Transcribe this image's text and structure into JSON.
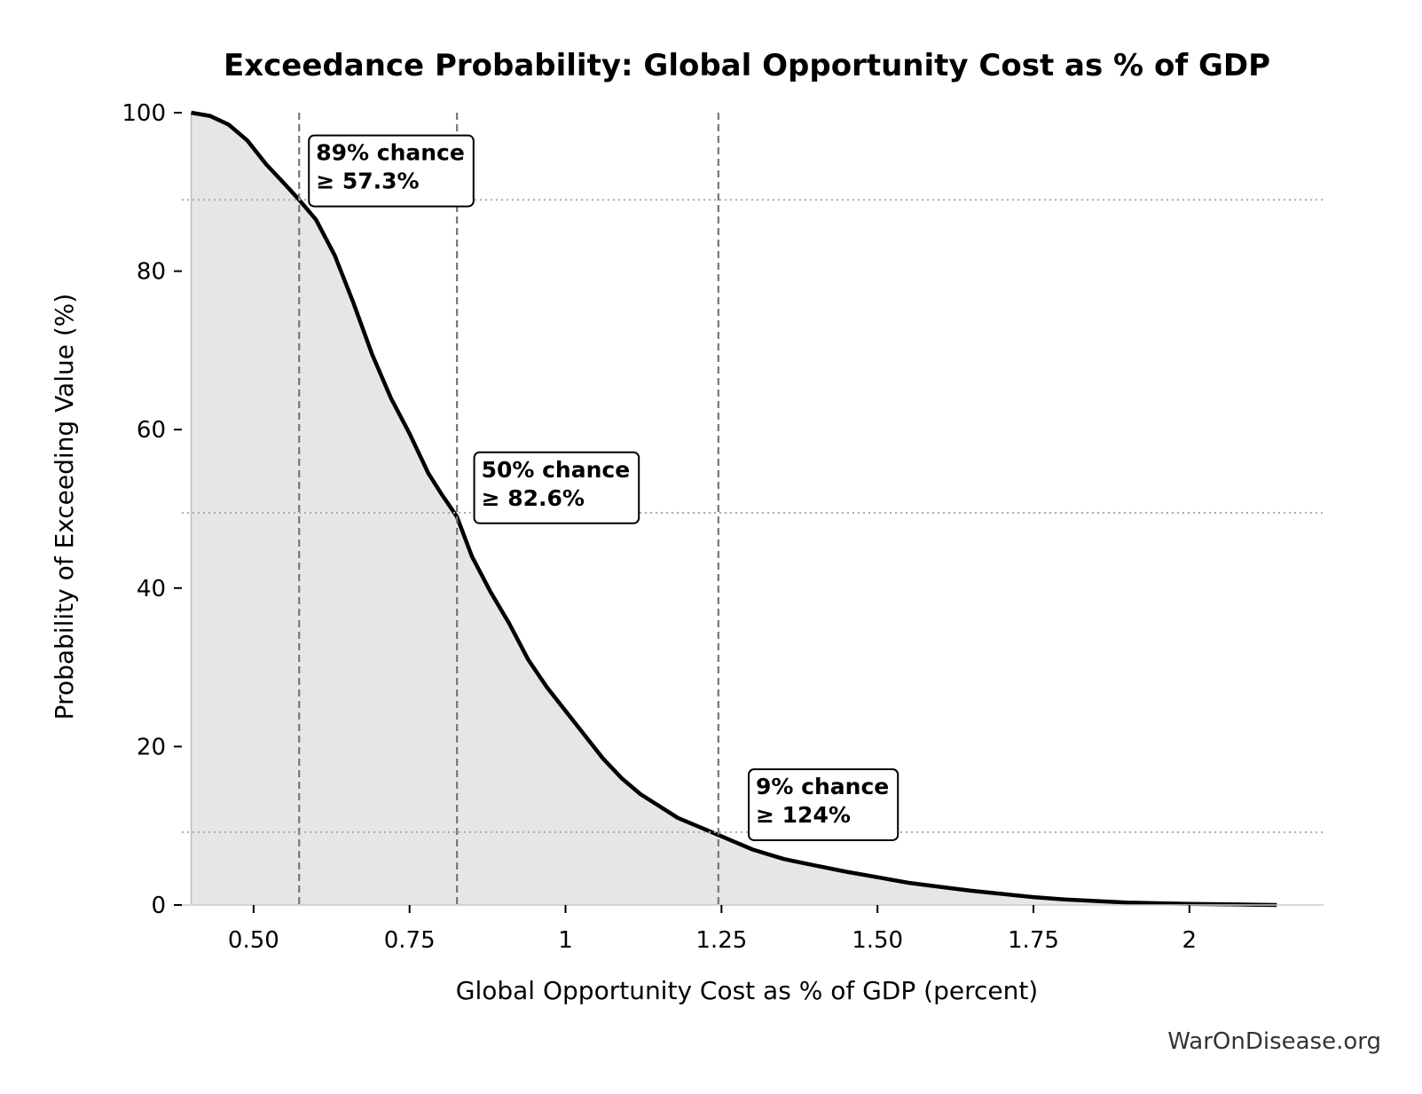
{
  "chart_data": {
    "type": "area",
    "title": "Exceedance Probability: Global Opportunity Cost as % of GDP",
    "xlabel": "Global Opportunity Cost as % of GDP (percent)",
    "ylabel": "Probability of Exceeding Value (%)",
    "xlim": [
      0.385,
      2.215
    ],
    "ylim": [
      0,
      100
    ],
    "x_ticks": [
      {
        "value": 0.5,
        "label": "0.50"
      },
      {
        "value": 0.75,
        "label": "0.75"
      },
      {
        "value": 1.0,
        "label": "1"
      },
      {
        "value": 1.25,
        "label": "1.25"
      },
      {
        "value": 1.5,
        "label": "1.50"
      },
      {
        "value": 1.75,
        "label": "1.75"
      },
      {
        "value": 2.0,
        "label": "2"
      }
    ],
    "y_ticks": [
      {
        "value": 0,
        "label": "0"
      },
      {
        "value": 20,
        "label": "20"
      },
      {
        "value": 40,
        "label": "40"
      },
      {
        "value": 60,
        "label": "60"
      },
      {
        "value": 80,
        "label": "80"
      },
      {
        "value": 100,
        "label": "100"
      }
    ],
    "series": [
      {
        "x": [
          0.4,
          0.43,
          0.46,
          0.49,
          0.52,
          0.55,
          0.573,
          0.6,
          0.63,
          0.66,
          0.69,
          0.72,
          0.75,
          0.78,
          0.8,
          0.826,
          0.85,
          0.88,
          0.91,
          0.94,
          0.97,
          1.0,
          1.03,
          1.06,
          1.09,
          1.12,
          1.15,
          1.18,
          1.21,
          1.24,
          1.27,
          1.3,
          1.35,
          1.4,
          1.45,
          1.5,
          1.55,
          1.6,
          1.65,
          1.7,
          1.75,
          1.8,
          1.85,
          1.9,
          2.0,
          2.1,
          2.14
        ],
        "y": [
          100,
          99.6,
          98.5,
          96.5,
          93.5,
          91,
          89,
          86.5,
          82,
          76,
          69.5,
          64,
          59.5,
          54.5,
          52,
          49,
          44,
          39.5,
          35.5,
          31,
          27.5,
          24.5,
          21.5,
          18.5,
          16,
          14,
          12.5,
          11,
          10,
          9,
          8,
          7,
          5.8,
          5,
          4.2,
          3.5,
          2.8,
          2.3,
          1.8,
          1.4,
          1.0,
          0.7,
          0.5,
          0.3,
          0.15,
          0.05,
          0
        ],
        "color": "#000000",
        "fill": "#e6e6e6"
      }
    ],
    "threshold_lines": [
      {
        "x": 0.573,
        "y": 89
      },
      {
        "x": 0.826,
        "y": 49.5
      },
      {
        "x": 1.245,
        "y": 9.2
      }
    ],
    "annotations": [
      {
        "line1": "89% chance",
        "line2": "≥ 57.3%",
        "x": 0.6,
        "y": 94
      },
      {
        "line1": "50% chance",
        "line2": "≥ 82.6%",
        "x": 0.865,
        "y": 54
      },
      {
        "line1": "9% chance",
        "line2": "≥ 124%",
        "x": 1.305,
        "y": 14
      }
    ],
    "grid": false,
    "watermark": "WarOnDisease.org"
  }
}
